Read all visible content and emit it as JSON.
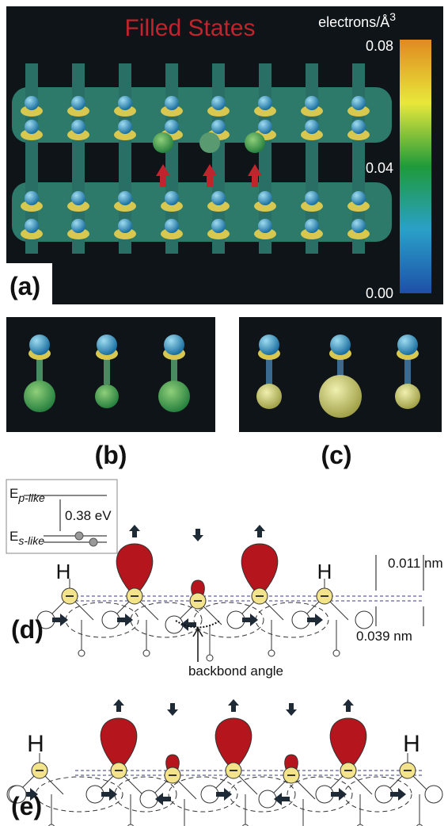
{
  "panel_a": {
    "title": "Filled States",
    "colorbar_unit": "electrons/Å",
    "colorbar_unit_power": "3",
    "colorbar_ticks": [
      "0.08",
      "0.04",
      "0.00"
    ],
    "label": "(a)"
  },
  "panel_b": {
    "label": "(b)"
  },
  "panel_c": {
    "label": "(c)"
  },
  "panel_d": {
    "label": "(d)",
    "inset": {
      "upper_symbol": "E",
      "upper_subscript": "p-like",
      "gap": "0.38 eV",
      "lower_symbol": "E",
      "lower_subscript": "s-like"
    },
    "atom_labels": [
      "H",
      "H"
    ],
    "height_upper": "0.011 nm",
    "height_lower": "0.039 nm",
    "annotation": "backbond angle"
  },
  "panel_e": {
    "label": "(e)",
    "atom_labels": [
      "H",
      "H"
    ]
  }
}
